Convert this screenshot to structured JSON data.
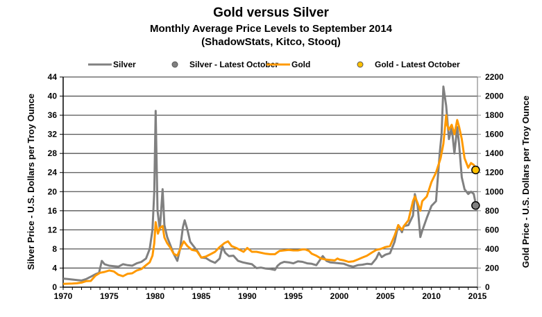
{
  "chart_data": {
    "type": "line",
    "title": "Gold versus Silver",
    "subtitle": "Monthly Average Price Levels to September 2014",
    "source": "(ShadowStats, Kitco, Stooq)",
    "xlabel": "",
    "ylabel_left": "Silver  Price - U.S. Dollars  per Troy Ounce",
    "ylabel_right": "Gold Price - U.S. Dollars  per Troy Ounce",
    "xlim": [
      1970,
      2015
    ],
    "ylim_left": [
      0,
      44
    ],
    "ylim_right": [
      0,
      2200
    ],
    "x_ticks": [
      "1970",
      "1975",
      "1980",
      "1985",
      "1990",
      "1995",
      "2000",
      "2005",
      "2010",
      "2015"
    ],
    "y_ticks_left": [
      "0",
      "4",
      "8",
      "12",
      "16",
      "20",
      "24",
      "28",
      "32",
      "36",
      "40",
      "44"
    ],
    "y_ticks_right": [
      "0",
      "200",
      "400",
      "600",
      "800",
      "1000",
      "1200",
      "1400",
      "1600",
      "1800",
      "2000",
      "2200"
    ],
    "grid": true,
    "legend_position": "top",
    "legend": [
      {
        "name": "Silver",
        "kind": "line",
        "color": "#808080"
      },
      {
        "name": "Silver - Latest October",
        "kind": "marker",
        "color": "#808080"
      },
      {
        "name": "Gold",
        "kind": "line",
        "color": "#FF9900"
      },
      {
        "name": "Gold - Latest October",
        "kind": "marker",
        "color": "#FFC000"
      }
    ],
    "series": [
      {
        "name": "Silver",
        "axis": "left",
        "color": "#808080",
        "x": [
          1970.0,
          1970.5,
          1971.0,
          1971.5,
          1972.0,
          1972.5,
          1973.0,
          1973.5,
          1973.9,
          1974.2,
          1974.5,
          1975.0,
          1975.5,
          1976.0,
          1976.5,
          1977.0,
          1977.5,
          1978.0,
          1978.5,
          1979.0,
          1979.4,
          1979.7,
          1979.9,
          1980.05,
          1980.25,
          1980.5,
          1980.8,
          1981.0,
          1981.3,
          1981.6,
          1982.0,
          1982.4,
          1982.7,
          1983.0,
          1983.2,
          1983.5,
          1983.8,
          1984.2,
          1984.6,
          1985.0,
          1985.5,
          1986.0,
          1986.5,
          1987.0,
          1987.3,
          1987.6,
          1988.0,
          1988.5,
          1989.0,
          1989.5,
          1990.0,
          1990.5,
          1991.0,
          1991.5,
          1992.0,
          1992.5,
          1993.0,
          1993.3,
          1993.6,
          1994.0,
          1994.5,
          1995.0,
          1995.5,
          1996.0,
          1996.5,
          1997.0,
          1997.5,
          1998.0,
          1998.2,
          1998.6,
          1999.0,
          1999.5,
          2000.0,
          2000.5,
          2001.0,
          2001.5,
          2002.0,
          2002.5,
          2003.0,
          2003.5,
          2004.0,
          2004.3,
          2004.6,
          2005.0,
          2005.5,
          2006.0,
          2006.4,
          2006.8,
          2007.0,
          2007.5,
          2008.0,
          2008.2,
          2008.5,
          2008.8,
          2009.0,
          2009.5,
          2010.0,
          2010.5,
          2010.9,
          2011.1,
          2011.3,
          2011.6,
          2011.9,
          2012.2,
          2012.5,
          2012.8,
          2013.0,
          2013.3,
          2013.6,
          2014.0,
          2014.3,
          2014.6,
          2014.75
        ],
        "values": [
          1.8,
          1.7,
          1.6,
          1.5,
          1.4,
          1.7,
          2.2,
          2.7,
          3.0,
          5.5,
          4.8,
          4.5,
          4.4,
          4.3,
          4.8,
          4.6,
          4.5,
          5.0,
          5.3,
          6.0,
          8.0,
          12.0,
          20.0,
          36.9,
          16.0,
          12.0,
          20.5,
          13.0,
          10.5,
          9.0,
          7.0,
          5.5,
          8.0,
          12.5,
          14.0,
          12.0,
          9.5,
          8.5,
          7.5,
          6.2,
          6.1,
          5.5,
          5.1,
          6.0,
          8.5,
          7.2,
          6.5,
          6.6,
          5.5,
          5.2,
          5.0,
          4.8,
          4.0,
          4.1,
          3.9,
          3.8,
          3.6,
          4.5,
          5.0,
          5.3,
          5.2,
          5.0,
          5.4,
          5.3,
          5.0,
          4.9,
          4.6,
          6.0,
          6.5,
          5.5,
          5.2,
          5.1,
          5.0,
          4.9,
          4.5,
          4.3,
          4.6,
          4.7,
          4.9,
          4.8,
          6.0,
          7.2,
          6.3,
          6.8,
          7.1,
          9.5,
          13.0,
          11.5,
          12.8,
          13.0,
          15.0,
          19.5,
          17.0,
          10.5,
          11.8,
          14.5,
          17.0,
          18.0,
          28.0,
          32.0,
          42.0,
          38.0,
          31.0,
          33.5,
          28.0,
          33.5,
          30.0,
          23.0,
          20.5,
          19.5,
          20.0,
          19.5,
          18.0
        ]
      },
      {
        "name": "Gold",
        "axis": "right",
        "color": "#FF9900",
        "x": [
          1970.0,
          1970.5,
          1971.0,
          1971.5,
          1972.0,
          1972.5,
          1973.0,
          1973.5,
          1974.0,
          1974.5,
          1975.0,
          1975.5,
          1976.0,
          1976.5,
          1977.0,
          1977.5,
          1978.0,
          1978.5,
          1979.0,
          1979.4,
          1979.7,
          1979.9,
          1980.05,
          1980.3,
          1980.5,
          1980.8,
          1981.0,
          1981.3,
          1981.6,
          1982.0,
          1982.4,
          1982.8,
          1983.1,
          1983.5,
          1984.0,
          1984.5,
          1985.0,
          1985.5,
          1986.0,
          1986.5,
          1987.0,
          1987.5,
          1987.9,
          1988.3,
          1988.8,
          1989.2,
          1989.6,
          1990.0,
          1990.5,
          1991.0,
          1991.5,
          1992.0,
          1992.5,
          1993.0,
          1993.5,
          1994.0,
          1994.5,
          1995.0,
          1995.5,
          1996.0,
          1996.3,
          1996.7,
          1997.0,
          1997.5,
          1998.0,
          1998.5,
          1999.0,
          1999.5,
          1999.8,
          2000.0,
          2000.5,
          2001.0,
          2001.5,
          2002.0,
          2002.5,
          2003.0,
          2003.5,
          2004.0,
          2004.5,
          2005.0,
          2005.5,
          2006.0,
          2006.4,
          2006.8,
          2007.0,
          2007.5,
          2008.0,
          2008.2,
          2008.5,
          2008.8,
          2009.0,
          2009.5,
          2010.0,
          2010.5,
          2011.0,
          2011.3,
          2011.6,
          2011.7,
          2011.9,
          2012.2,
          2012.5,
          2012.8,
          2013.0,
          2013.3,
          2013.6,
          2014.0,
          2014.3,
          2014.6,
          2014.75
        ],
        "values": [
          35,
          36,
          38,
          41,
          48,
          63,
          65,
          120,
          150,
          160,
          175,
          165,
          130,
          115,
          140,
          145,
          175,
          190,
          230,
          260,
          330,
          460,
          680,
          560,
          620,
          640,
          520,
          460,
          420,
          350,
          330,
          420,
          480,
          430,
          390,
          380,
          310,
          320,
          345,
          370,
          420,
          460,
          480,
          430,
          410,
          390,
          370,
          410,
          370,
          370,
          360,
          350,
          345,
          345,
          380,
          385,
          390,
          385,
          385,
          395,
          395,
          380,
          350,
          330,
          300,
          290,
          285,
          280,
          300,
          290,
          280,
          265,
          270,
          290,
          310,
          330,
          360,
          390,
          400,
          420,
          430,
          540,
          650,
          600,
          640,
          700,
          900,
          950,
          880,
          800,
          900,
          950,
          1100,
          1200,
          1350,
          1500,
          1800,
          1700,
          1650,
          1700,
          1600,
          1750,
          1680,
          1550,
          1350,
          1250,
          1300,
          1280,
          1250
        ]
      }
    ],
    "markers": [
      {
        "name": "Silver - Latest October",
        "axis": "left",
        "x": 2014.8,
        "value": 17.1,
        "color": "#808080"
      },
      {
        "name": "Gold - Latest October",
        "axis": "right",
        "x": 2014.8,
        "value": 1227,
        "color": "#FFC000"
      }
    ]
  }
}
